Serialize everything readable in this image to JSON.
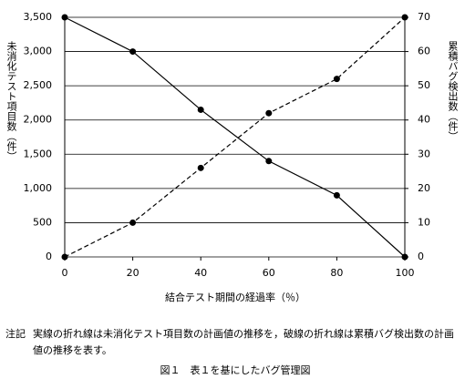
{
  "chart_data": {
    "type": "line",
    "ylabel": "未消化テスト項目数（件）",
    "y2label": "累積バグ検出数（件）",
    "xlabel": "結合テスト期間の経過率（％）",
    "note_label": "注記",
    "note": "実線の折れ線は未消化テスト項目数の計画値の推移を，破線の折れ線は累積バグ検出数の計画値の推移を表す。",
    "caption": "図１　表１を基にしたバグ管理図",
    "x": [
      0,
      20,
      40,
      60,
      80,
      100
    ],
    "xlim": [
      0,
      100
    ],
    "xticks": [
      0,
      20,
      40,
      60,
      80,
      100
    ],
    "ylim": [
      0,
      3500
    ],
    "yticks": [
      0,
      500,
      {
        "value": 1000,
        "label": "1,000"
      },
      {
        "value": 1500,
        "label": "1,500"
      },
      {
        "value": 2000,
        "label": "2,000"
      },
      {
        "value": 2500,
        "label": "2,500"
      },
      {
        "value": 3000,
        "label": "3,000"
      },
      {
        "value": 3500,
        "label": "3,500"
      }
    ],
    "y2lim": [
      0,
      70
    ],
    "y2ticks": [
      0,
      10,
      20,
      30,
      40,
      50,
      60,
      70
    ],
    "grid": true,
    "series": [
      {
        "color": "#000000",
        "dash": false,
        "values": [
          3500,
          3000,
          2150,
          1400,
          900,
          0
        ]
      },
      {
        "color": "#000000",
        "dash": true,
        "axis": "y2",
        "values": [
          0,
          10,
          26,
          42,
          52,
          70
        ]
      }
    ]
  }
}
